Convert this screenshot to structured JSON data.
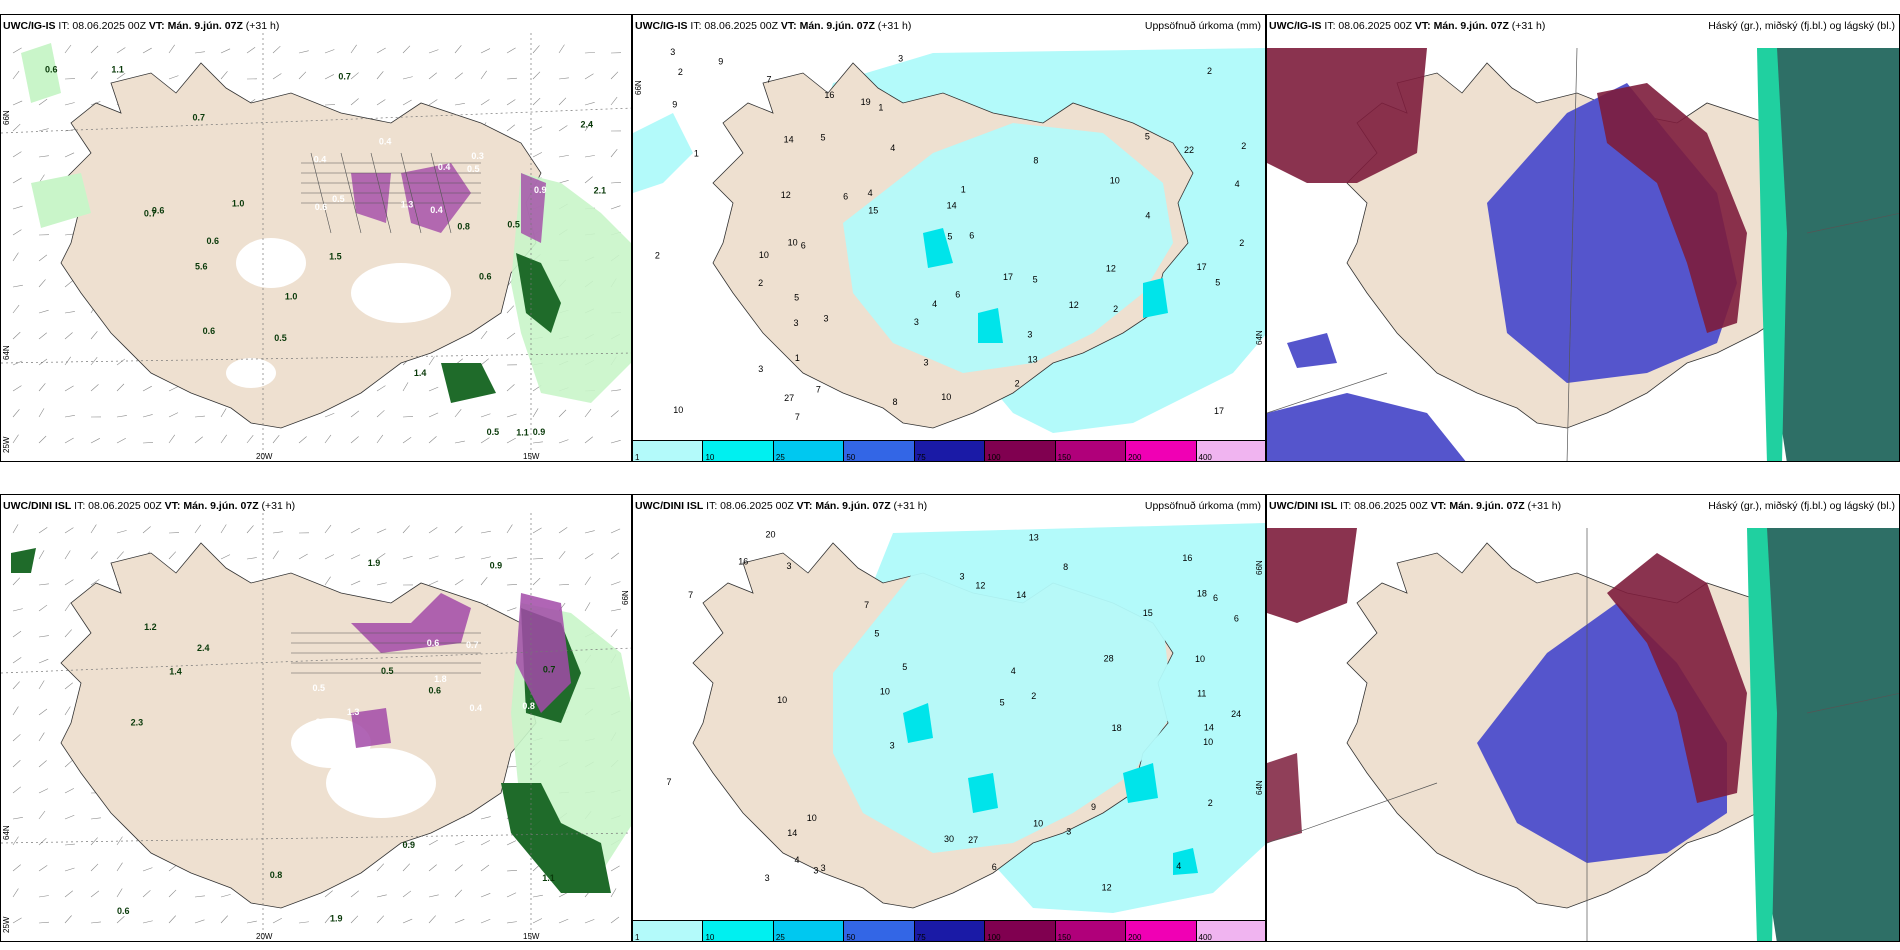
{
  "colors": {
    "land": "#eee0d0",
    "sea": "#ffffff",
    "precip_light": "#b3fafa",
    "precip_mid": "#00e4ea",
    "green_light": "#c9f5c9",
    "green_dark": "#1f6b2a",
    "purple": "#a24aa8",
    "cloud_high": "#7d1d3c",
    "cloud_mid": "#5555cc",
    "cloud_low": "#2e6f66"
  },
  "rows": [
    {
      "model": "UWC/IG-IS",
      "panels": [
        {
          "type": "wind",
          "header_model": "UWC/IG-IS",
          "header_it": "IT: 08.06.2025 00Z",
          "header_vt": "VT: Mán. 9.jún. 07Z",
          "header_lead": "(+31 h)",
          "right_title": "",
          "lon_labels": [
            "20W",
            "15W",
            "25W"
          ],
          "lat_labels": [
            "66N",
            "64N"
          ],
          "green_labels": [
            "1.0",
            "0.7",
            "1.1",
            "0.6",
            "0.9",
            "0.7",
            "0.5",
            "5.6",
            "0.6",
            "0.8",
            "0.5",
            "0.7",
            "0.6",
            "0.5",
            "0.6",
            "1.4",
            "1.5",
            "2.1",
            "2.4",
            "1.0",
            "1.1",
            "0.6"
          ],
          "purple_labels": [
            "0.4",
            "0.3",
            "0.9",
            "1.3",
            "0.4",
            "0.5",
            "0.4",
            "0.5",
            "0.6",
            "0.4"
          ]
        },
        {
          "type": "precip",
          "header_model": "UWC/IG-IS",
          "header_it": "IT: 08.06.2025 00Z",
          "header_vt": "VT: Mán. 9.jún. 07Z",
          "header_lead": "(+31 h)",
          "right_title": "Uppsöfnuð úrkoma (mm)",
          "lat_labels": [
            "66N",
            "64N"
          ],
          "colorbar": [
            "1",
            "10",
            "25",
            "50",
            "75",
            "100",
            "150",
            "200",
            "400"
          ],
          "values": [
            "2",
            "3",
            "2",
            "2",
            "2",
            "3",
            "1",
            "3",
            "10",
            "12",
            "3",
            "6",
            "7",
            "2",
            "4",
            "6",
            "3",
            "3",
            "5",
            "4",
            "4",
            "3",
            "7",
            "10",
            "10",
            "6",
            "5",
            "2",
            "8",
            "19",
            "17",
            "16",
            "22",
            "5",
            "5",
            "12",
            "7",
            "15",
            "13",
            "8",
            "14",
            "10",
            "5",
            "4",
            "9",
            "1",
            "1",
            "4",
            "2",
            "1",
            "2",
            "6",
            "27",
            "17",
            "12",
            "9",
            "17",
            "14",
            "5",
            "3",
            "10"
          ]
        },
        {
          "type": "cloud",
          "header_model": "UWC/IG-IS",
          "header_it": "IT: 08.06.2025 00Z",
          "header_vt": "VT: Mán. 9.jún. 07Z",
          "header_lead": "(+31 h)",
          "right_title": "Háský (gr.), miðský (fj.bl.) og lágský (bl.)"
        }
      ]
    },
    {
      "model": "UWC/DINI ISL",
      "panels": [
        {
          "type": "wind",
          "header_model": "UWC/DINI ISL",
          "header_it": "IT: 08.06.2025 00Z",
          "header_vt": "VT: Mán. 9.jún. 07Z",
          "header_lead": "(+31 h)",
          "right_title": "",
          "lon_labels": [
            "20W",
            "15W",
            "25W"
          ],
          "lat_labels": [
            "66N",
            "64N"
          ],
          "green_labels": [
            "0.9",
            "2.3",
            "0.7",
            "0.8",
            "1.1",
            "1.2",
            "2.4",
            "0.9",
            "1.9",
            "0.5",
            "1.4",
            "0.6",
            "0.6",
            "1.9"
          ],
          "purple_labels": [
            "0.6",
            "0.7",
            "0.4",
            "3.3",
            "1.8",
            "0.5",
            "0.8",
            "1.3"
          ]
        },
        {
          "type": "precip",
          "header_model": "UWC/DINI ISL",
          "header_it": "IT: 08.06.2025 00Z",
          "header_vt": "VT: Mán. 9.jún. 07Z",
          "header_lead": "(+31 h)",
          "right_title": "Uppsöfnuð úrkoma (mm)",
          "lat_labels": [
            "66N",
            "64N"
          ],
          "colorbar": [
            "1",
            "10",
            "25",
            "50",
            "75",
            "100",
            "150",
            "200",
            "400"
          ],
          "values": [
            "3",
            "3",
            "3",
            "3",
            "3",
            "4",
            "12",
            "5",
            "7",
            "3",
            "4",
            "10",
            "10",
            "14",
            "14",
            "8",
            "6",
            "5",
            "7",
            "2",
            "10",
            "13",
            "18",
            "16",
            "12",
            "14",
            "10",
            "28",
            "20",
            "30",
            "24",
            "16",
            "18",
            "9",
            "5",
            "15",
            "10",
            "7",
            "6",
            "4",
            "3",
            "6",
            "2",
            "27",
            "10",
            "11"
          ]
        },
        {
          "type": "cloud",
          "header_model": "UWC/DINI ISL",
          "header_it": "IT: 08.06.2025 00Z",
          "header_vt": "VT: Mán. 9.jún. 07Z",
          "header_lead": "(+31 h)",
          "right_title": "Háský (gr.), miðský (fj.bl.) og lágský (bl.)"
        }
      ]
    }
  ]
}
